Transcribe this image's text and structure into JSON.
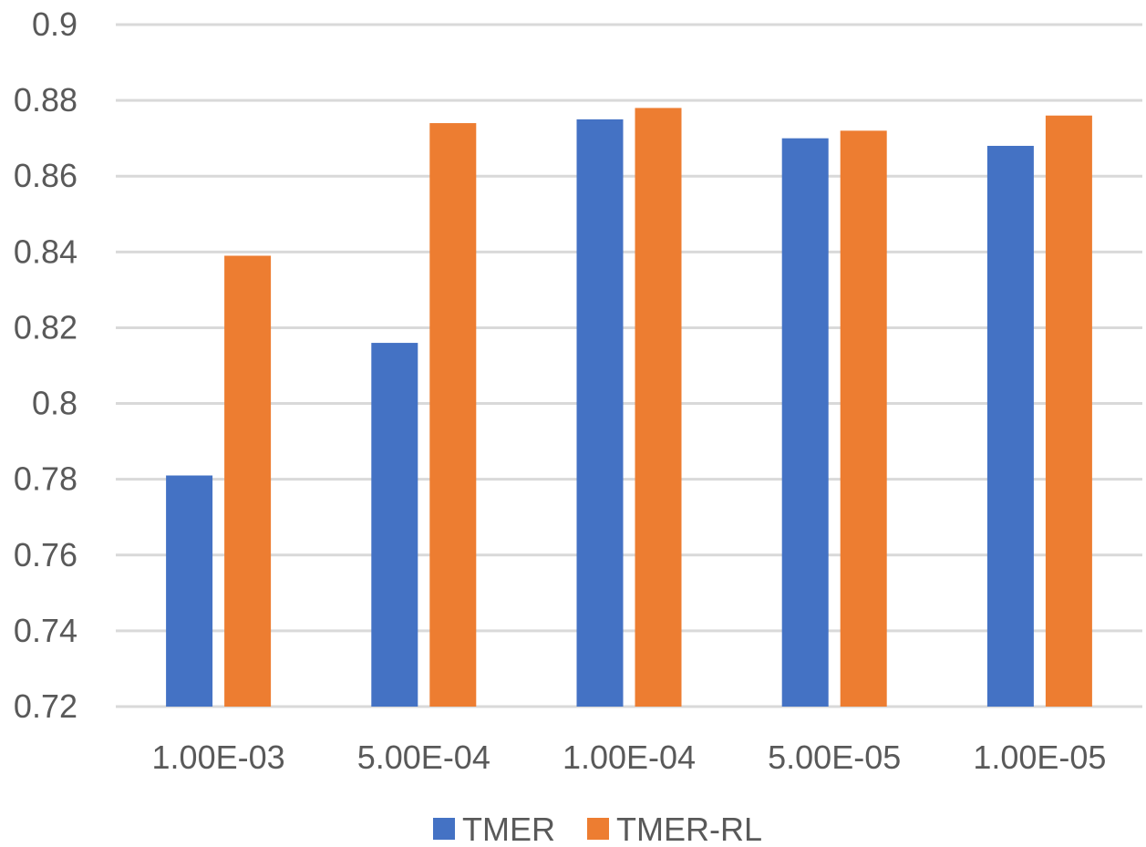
{
  "chart_data": {
    "type": "bar",
    "categories": [
      "1.00E-03",
      "5.00E-04",
      "1.00E-04",
      "5.00E-05",
      "1.00E-05"
    ],
    "series": [
      {
        "name": "TMER",
        "color": "#4472c4",
        "values": [
          0.781,
          0.816,
          0.875,
          0.87,
          0.868
        ]
      },
      {
        "name": "TMER-RL",
        "color": "#ed7d31",
        "values": [
          0.839,
          0.874,
          0.878,
          0.872,
          0.876
        ]
      }
    ],
    "ylim": [
      0.72,
      0.9
    ],
    "yticks": [
      "0.72",
      "0.74",
      "0.76",
      "0.78",
      "0.8",
      "0.82",
      "0.84",
      "0.86",
      "0.88",
      "0.9"
    ],
    "grid": true,
    "legend_position": "bottom"
  }
}
